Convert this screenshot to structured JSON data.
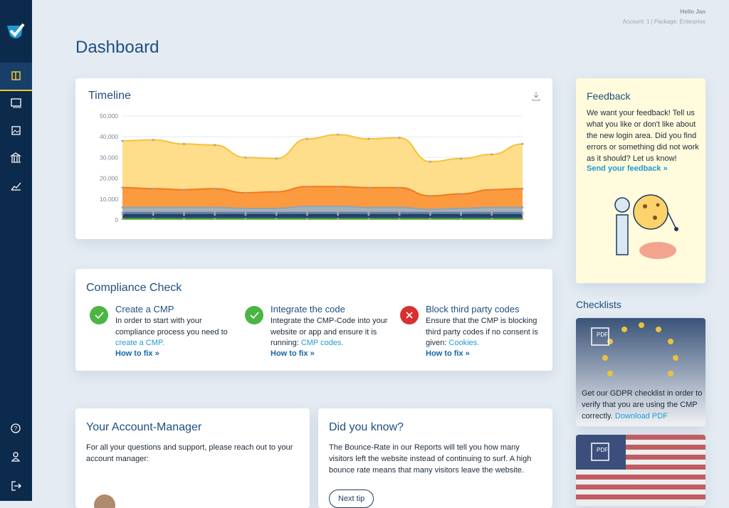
{
  "header": {
    "greeting": "Hello Jan",
    "account": "Account: 1 | Package: Enterprise",
    "title": "Dashboard"
  },
  "chart_data": {
    "type": "area",
    "stacked": true,
    "title": "Timeline",
    "categories": [
      null,
      null,
      null,
      null,
      null,
      null,
      null,
      null,
      null,
      null,
      null,
      null,
      null,
      null
    ],
    "series": [
      {
        "color": "#6cbf4a",
        "values": [
          500,
          500,
          500,
          500,
          500,
          500,
          500,
          500,
          500,
          500,
          500,
          500,
          500,
          500
        ]
      },
      {
        "color": "#27466f",
        "values": [
          2000,
          2000,
          2000,
          2000,
          2000,
          2000,
          2000,
          2000,
          2000,
          2000,
          2000,
          2000,
          2000,
          2000
        ]
      },
      {
        "color": "#6d8fb5",
        "values": [
          1000,
          1000,
          1000,
          1000,
          1000,
          1000,
          1000,
          1000,
          1000,
          1000,
          1000,
          1000,
          1000,
          1000
        ]
      },
      {
        "color": "#a7b0b9",
        "values": [
          2500,
          2500,
          2500,
          2500,
          2000,
          2000,
          3000,
          3000,
          2500,
          2500,
          1500,
          2000,
          2500,
          2500
        ]
      },
      {
        "color": "#fc9a3f",
        "values": [
          9500,
          9000,
          8500,
          9000,
          7500,
          8000,
          9500,
          9500,
          9500,
          9500,
          6500,
          7000,
          8500,
          9000
        ]
      },
      {
        "color": "#fedd8b",
        "values": [
          22500,
          23500,
          22000,
          21000,
          17000,
          16000,
          23000,
          25000,
          23500,
          24000,
          16500,
          17000,
          17000,
          21500
        ]
      }
    ],
    "ylim": [
      0,
      50000
    ],
    "yticks": [
      0,
      {
        "value": 10000,
        "label": "10,000"
      },
      {
        "value": 20000,
        "label": "20,000"
      },
      {
        "value": 30000,
        "label": "30,000"
      },
      {
        "value": 40000,
        "label": "40,000"
      },
      {
        "value": 50000,
        "label": "50,000"
      }
    ],
    "grid": true
  },
  "compliance": {
    "title": "Compliance Check",
    "items": [
      {
        "title": "Create a CMP",
        "text": "In order to start with your compliance process you need to",
        "link": "create a CMP.",
        "fix": "How to fix »",
        "status": "ok"
      },
      {
        "title": "Integrate the code",
        "text": "Integrate the CMP-Code into your website or app and ensure it is running:",
        "link": "CMP codes.",
        "fix": "How to fix »",
        "status": "ok"
      },
      {
        "title": "Block third party codes",
        "text": "Ensure that the CMP is blocking third party codes if no consent is given:",
        "link": "Cookies.",
        "fix": "How to fix »",
        "status": "error"
      }
    ]
  },
  "feedback": {
    "title": "Feedback",
    "text": "We want your feedback! Tell us what you like or don't like about the new login area. Did you find errors or something did not work as it should? Let us know!",
    "link": "Send your feedback »"
  },
  "checklists": {
    "title": "Checklists",
    "items": [
      {
        "badge": "PDF",
        "text": "Get our GDPR checklist in order to verify that you are using the CMP correctly.",
        "link": "Download PDF"
      },
      {
        "badge": "PDF"
      }
    ]
  },
  "account_manager": {
    "title": "Your Account-Manager",
    "text": "For all your questions and support, please reach out to your account manager:"
  },
  "did_you_know": {
    "title": "Did you know?",
    "text": "The Bounce-Rate in our Reports will tell you how many visitors left the website instead of continuing to surf. A high bounce rate means that many visitors leave the website.",
    "button": "Next tip"
  }
}
